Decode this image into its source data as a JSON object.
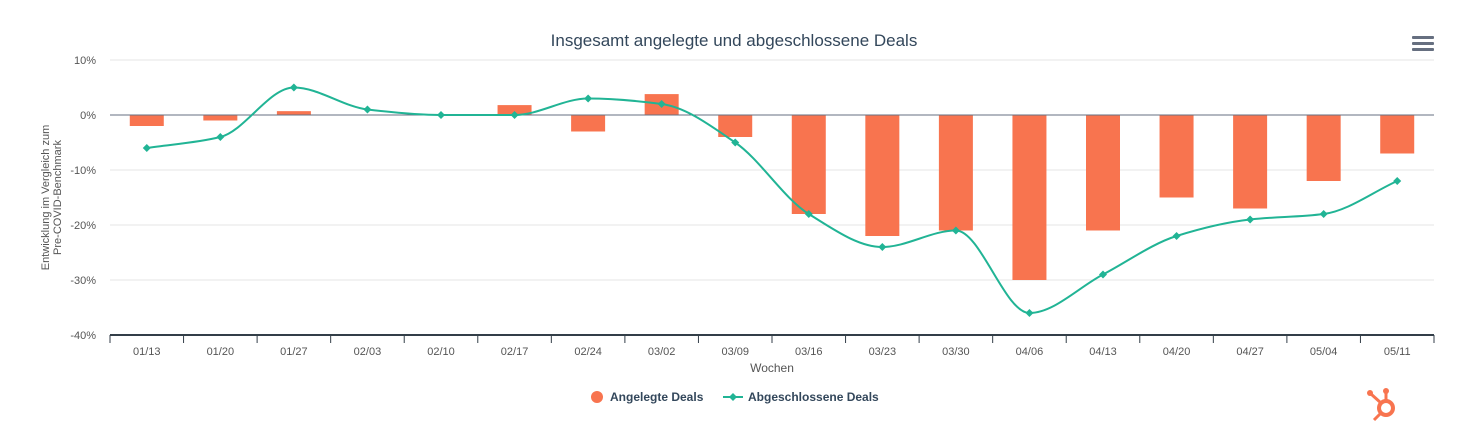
{
  "chart_data": {
    "type": "bar+line",
    "title": "Insgesamt angelegte und abgeschlossene Deals",
    "xlabel": "Wochen",
    "ylabel": "Entwicklung im Vergleich zum Pre-COVID-Benchmark",
    "ylim": [
      -40,
      10
    ],
    "yticks": [
      "10%",
      "0%",
      "-10%",
      "-20%",
      "-30%",
      "-40%"
    ],
    "ytick_values": [
      10,
      0,
      -10,
      -20,
      -30,
      -40
    ],
    "grid": true,
    "legend_position": "bottom-center",
    "categories": [
      "01/13",
      "01/20",
      "01/27",
      "02/03",
      "02/10",
      "02/17",
      "02/24",
      "03/02",
      "03/09",
      "03/16",
      "03/23",
      "03/30",
      "04/06",
      "04/13",
      "04/20",
      "04/27",
      "05/04",
      "05/11"
    ],
    "series": [
      {
        "name": "Angelegte Deals",
        "type": "bar",
        "color": "#f8744f",
        "values": [
          -2,
          -1,
          0.7,
          0,
          0,
          1.8,
          -3,
          3.8,
          -4,
          -18,
          -22,
          -21,
          -30,
          -21,
          -15,
          -17,
          -12,
          -7
        ]
      },
      {
        "name": "Abgeschlossene Deals",
        "type": "line",
        "color": "#21b495",
        "values": [
          -6,
          -4,
          5,
          1,
          0,
          0,
          3,
          2,
          -5,
          -18,
          -24,
          -21,
          -36,
          -29,
          -22,
          -19,
          -18,
          -12
        ]
      }
    ]
  },
  "icons": {
    "menu": "hamburger-menu-icon",
    "logo": "hubspot-sprocket-logo"
  },
  "colors": {
    "accent": "#f8744f",
    "line": "#21b495",
    "axis": "#333e48",
    "grid": "#e6e6e6"
  }
}
